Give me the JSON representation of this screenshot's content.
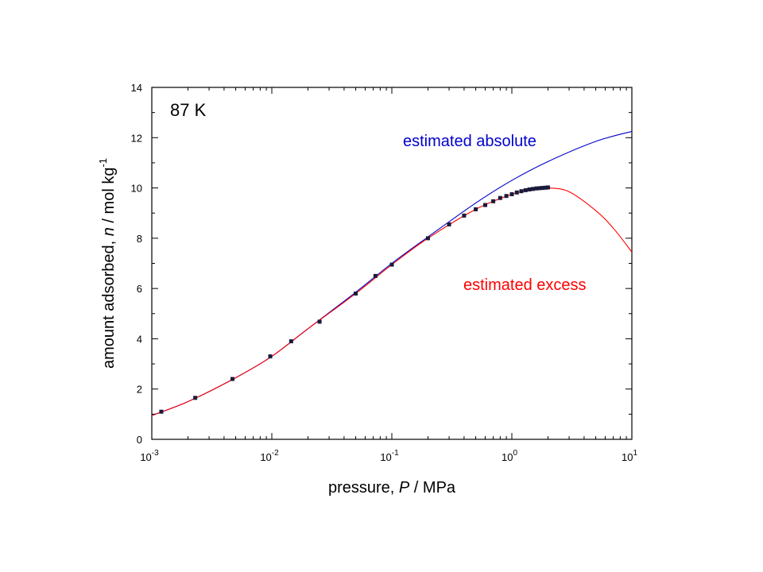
{
  "chart_data": {
    "type": "line",
    "annotation": "87 K",
    "xlabel": {
      "main": "pressure, ",
      "italic": "P",
      "unit": " / MPa"
    },
    "ylabel": {
      "main": "amount adsorbed, ",
      "italic": "n",
      "unit": " / mol kg",
      "sup": "-1"
    },
    "xscale": "log",
    "xlim": [
      0.001,
      10
    ],
    "ylim": [
      0,
      14
    ],
    "x_ticks": [
      {
        "base": "10",
        "exp": "-3",
        "value": 0.001
      },
      {
        "base": "10",
        "exp": "-2",
        "value": 0.01
      },
      {
        "base": "10",
        "exp": "-1",
        "value": 0.1
      },
      {
        "base": "10",
        "exp": "0",
        "value": 1
      },
      {
        "base": "10",
        "exp": "1",
        "value": 10
      }
    ],
    "y_ticks": [
      "0",
      "2",
      "4",
      "6",
      "8",
      "10",
      "12",
      "14"
    ],
    "grid": false,
    "series": [
      {
        "name": "estimated absolute",
        "kind": "line",
        "color": "#0000cc",
        "x": [
          0.001,
          0.002,
          0.005,
          0.01,
          0.02,
          0.05,
          0.1,
          0.2,
          0.5,
          1,
          2,
          5,
          10
        ],
        "y": [
          0.95,
          1.5,
          2.45,
          3.3,
          4.4,
          5.85,
          7.0,
          8.05,
          9.4,
          10.3,
          11.05,
          11.85,
          12.25
        ]
      },
      {
        "name": "estimated excess",
        "kind": "line",
        "color": "#ff0000",
        "x": [
          0.001,
          0.002,
          0.005,
          0.01,
          0.02,
          0.05,
          0.1,
          0.2,
          0.5,
          1,
          1.5,
          2,
          3,
          5,
          7,
          10
        ],
        "y": [
          0.95,
          1.5,
          2.45,
          3.3,
          4.4,
          5.8,
          6.95,
          8.0,
          9.15,
          9.75,
          9.95,
          10.0,
          9.85,
          9.1,
          8.4,
          7.45
        ]
      },
      {
        "name": "",
        "kind": "markers",
        "color": "#1a1a3a",
        "x": [
          0.0012,
          0.0023,
          0.0047,
          0.0097,
          0.0145,
          0.025,
          0.05,
          0.073,
          0.1,
          0.2,
          0.3,
          0.4,
          0.5,
          0.6,
          0.7,
          0.8,
          0.9,
          1.0,
          1.1,
          1.2,
          1.3,
          1.4,
          1.5,
          1.6,
          1.7,
          1.8,
          1.9,
          2.0
        ],
        "y": [
          1.1,
          1.65,
          2.4,
          3.3,
          3.9,
          4.68,
          5.8,
          6.5,
          6.95,
          8.0,
          8.55,
          8.9,
          9.15,
          9.32,
          9.47,
          9.6,
          9.68,
          9.75,
          9.82,
          9.87,
          9.91,
          9.94,
          9.96,
          9.98,
          9.99,
          10.0,
          10.01,
          10.02
        ]
      }
    ],
    "labels": [
      {
        "text": "estimated absolute",
        "color": "#0000cc",
        "anchor_x": 0.18,
        "anchor_y": 12.05
      },
      {
        "text": "estimated excess",
        "color": "#ff0000",
        "anchor_x": 0.5,
        "anchor_y": 6.0
      }
    ]
  }
}
